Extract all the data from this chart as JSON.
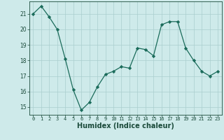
{
  "x": [
    0,
    1,
    2,
    3,
    4,
    5,
    6,
    7,
    8,
    9,
    10,
    11,
    12,
    13,
    14,
    15,
    16,
    17,
    18,
    19,
    20,
    21,
    22,
    23
  ],
  "y": [
    21.0,
    21.5,
    20.8,
    20.0,
    18.1,
    16.1,
    14.8,
    15.3,
    16.3,
    17.1,
    17.3,
    17.6,
    17.5,
    18.8,
    18.7,
    18.3,
    20.3,
    20.5,
    20.5,
    18.8,
    18.0,
    17.3,
    17.0,
    17.3
  ],
  "xlabel": "Humidex (Indice chaleur)",
  "ylabel": "",
  "title": "",
  "bg_color": "#ceeaea",
  "line_color": "#1a6b5a",
  "marker_color": "#1a6b5a",
  "grid_color": "#aacece",
  "axis_label_color": "#1a4a3a",
  "tick_color": "#1a4a3a",
  "ylim": [
    14.5,
    21.8
  ],
  "xlim": [
    -0.5,
    23.5
  ],
  "yticks": [
    15,
    16,
    17,
    18,
    19,
    20,
    21
  ],
  "xticks": [
    0,
    1,
    2,
    3,
    4,
    5,
    6,
    7,
    8,
    9,
    10,
    11,
    12,
    13,
    14,
    15,
    16,
    17,
    18,
    19,
    20,
    21,
    22,
    23
  ]
}
